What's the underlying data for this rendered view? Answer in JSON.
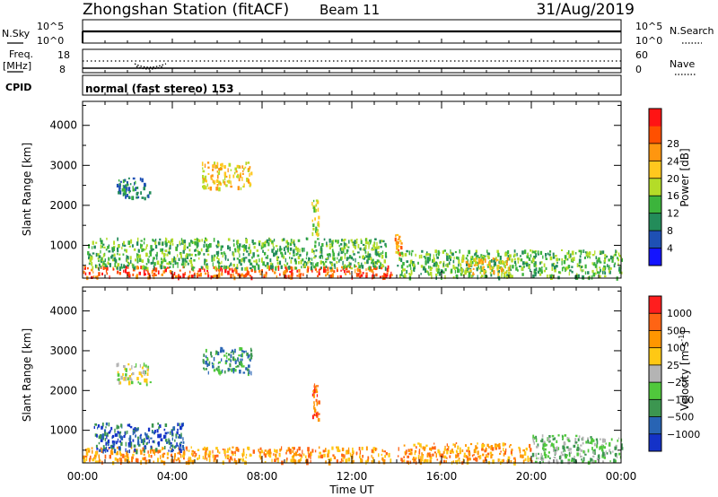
{
  "header": {
    "title": "Zhongshan Station (fitACF)",
    "beam": "Beam 11",
    "date": "31/Aug/2019"
  },
  "top_panels": {
    "nsky_label": "N.Sky",
    "nsky_ticks": [
      "10^5",
      "10^0"
    ],
    "nsearch_label": "N.Search",
    "nsearch_ticks": [
      "10^5",
      "10^0"
    ],
    "freq_label": "Freq.",
    "freq_unit": "[MHz]",
    "freq_ticks": [
      "18",
      "8"
    ],
    "nave_label": "Nave",
    "nave_ticks": [
      "60",
      "0"
    ],
    "cpid_label": "CPID",
    "cpid_text": "normal (fast stereo) 153"
  },
  "chart_data": [
    {
      "type": "heatmap",
      "name": "power",
      "ylabel": "Slant Range [km]",
      "ylim": [
        180,
        4600
      ],
      "yticks": [
        "1000",
        "2000",
        "3000",
        "4000"
      ],
      "xlim_hours": [
        0,
        24
      ],
      "colorbar": {
        "label": "Power [dB]",
        "ticks": [
          "4",
          "8",
          "12",
          "16",
          "20",
          "24",
          "28"
        ],
        "colors": [
          "#1414ff",
          "#1e50b4",
          "#238c5a",
          "#3cb43c",
          "#b4dc28",
          "#ffc81e",
          "#ff960f",
          "#ff5000",
          "#ff1414"
        ]
      },
      "echo_regions": [
        {
          "t0": 0.0,
          "t1": 13.8,
          "r0": 220,
          "r1": 500,
          "level": 7
        },
        {
          "t0": 0.2,
          "t1": 13.5,
          "r0": 450,
          "r1": 1200,
          "level": 3
        },
        {
          "t0": 1.5,
          "t1": 3.0,
          "r0": 2200,
          "r1": 2700,
          "level": 2
        },
        {
          "t0": 5.3,
          "t1": 7.5,
          "r0": 2450,
          "r1": 3100,
          "level": 5
        },
        {
          "t0": 10.2,
          "t1": 10.5,
          "r0": 1300,
          "r1": 2200,
          "level": 4
        },
        {
          "t0": 13.9,
          "t1": 14.2,
          "r0": 800,
          "r1": 1300,
          "level": 6
        },
        {
          "t0": 14.0,
          "t1": 24.0,
          "r0": 220,
          "r1": 900,
          "level": 3
        },
        {
          "t0": 16.8,
          "t1": 19.0,
          "r0": 300,
          "r1": 700,
          "level": 5
        }
      ]
    },
    {
      "type": "heatmap",
      "name": "velocity",
      "ylabel": "Slant Range [km]",
      "ylim": [
        180,
        4600
      ],
      "yticks": [
        "1000",
        "2000",
        "3000",
        "4000"
      ],
      "xlabel": "Time UT",
      "xticks": [
        "00:00",
        "04:00",
        "08:00",
        "12:00",
        "16:00",
        "20:00",
        "00:00"
      ],
      "xlim_hours": [
        0,
        24
      ],
      "colorbar": {
        "label": "Velocity [m s",
        "label_sup": "-1",
        "label_end": "]",
        "ticks": [
          "1000",
          "500",
          "100",
          "25",
          "−25",
          "−100",
          "−500",
          "−1000"
        ],
        "colors": [
          "#1432c8",
          "#2864b4",
          "#3c9650",
          "#50c83c",
          "#b4b4b4",
          "#ffc814",
          "#ff9600",
          "#ff6414",
          "#ff1e1e"
        ]
      },
      "echo_regions": [
        {
          "t0": 0.0,
          "t1": 13.8,
          "r0": 220,
          "r1": 600,
          "level": 6
        },
        {
          "t0": 0.5,
          "t1": 4.5,
          "r0": 500,
          "r1": 1200,
          "level": 1
        },
        {
          "t0": 1.5,
          "t1": 3.0,
          "r0": 2200,
          "r1": 2700,
          "level": 4
        },
        {
          "t0": 5.3,
          "t1": 7.5,
          "r0": 2450,
          "r1": 3100,
          "level": 2
        },
        {
          "t0": 10.2,
          "t1": 10.5,
          "r0": 1300,
          "r1": 2200,
          "level": 7
        },
        {
          "t0": 14.0,
          "t1": 20.0,
          "r0": 220,
          "r1": 700,
          "level": 6
        },
        {
          "t0": 20.0,
          "t1": 24.0,
          "r0": 220,
          "r1": 900,
          "level": 3
        }
      ]
    }
  ]
}
